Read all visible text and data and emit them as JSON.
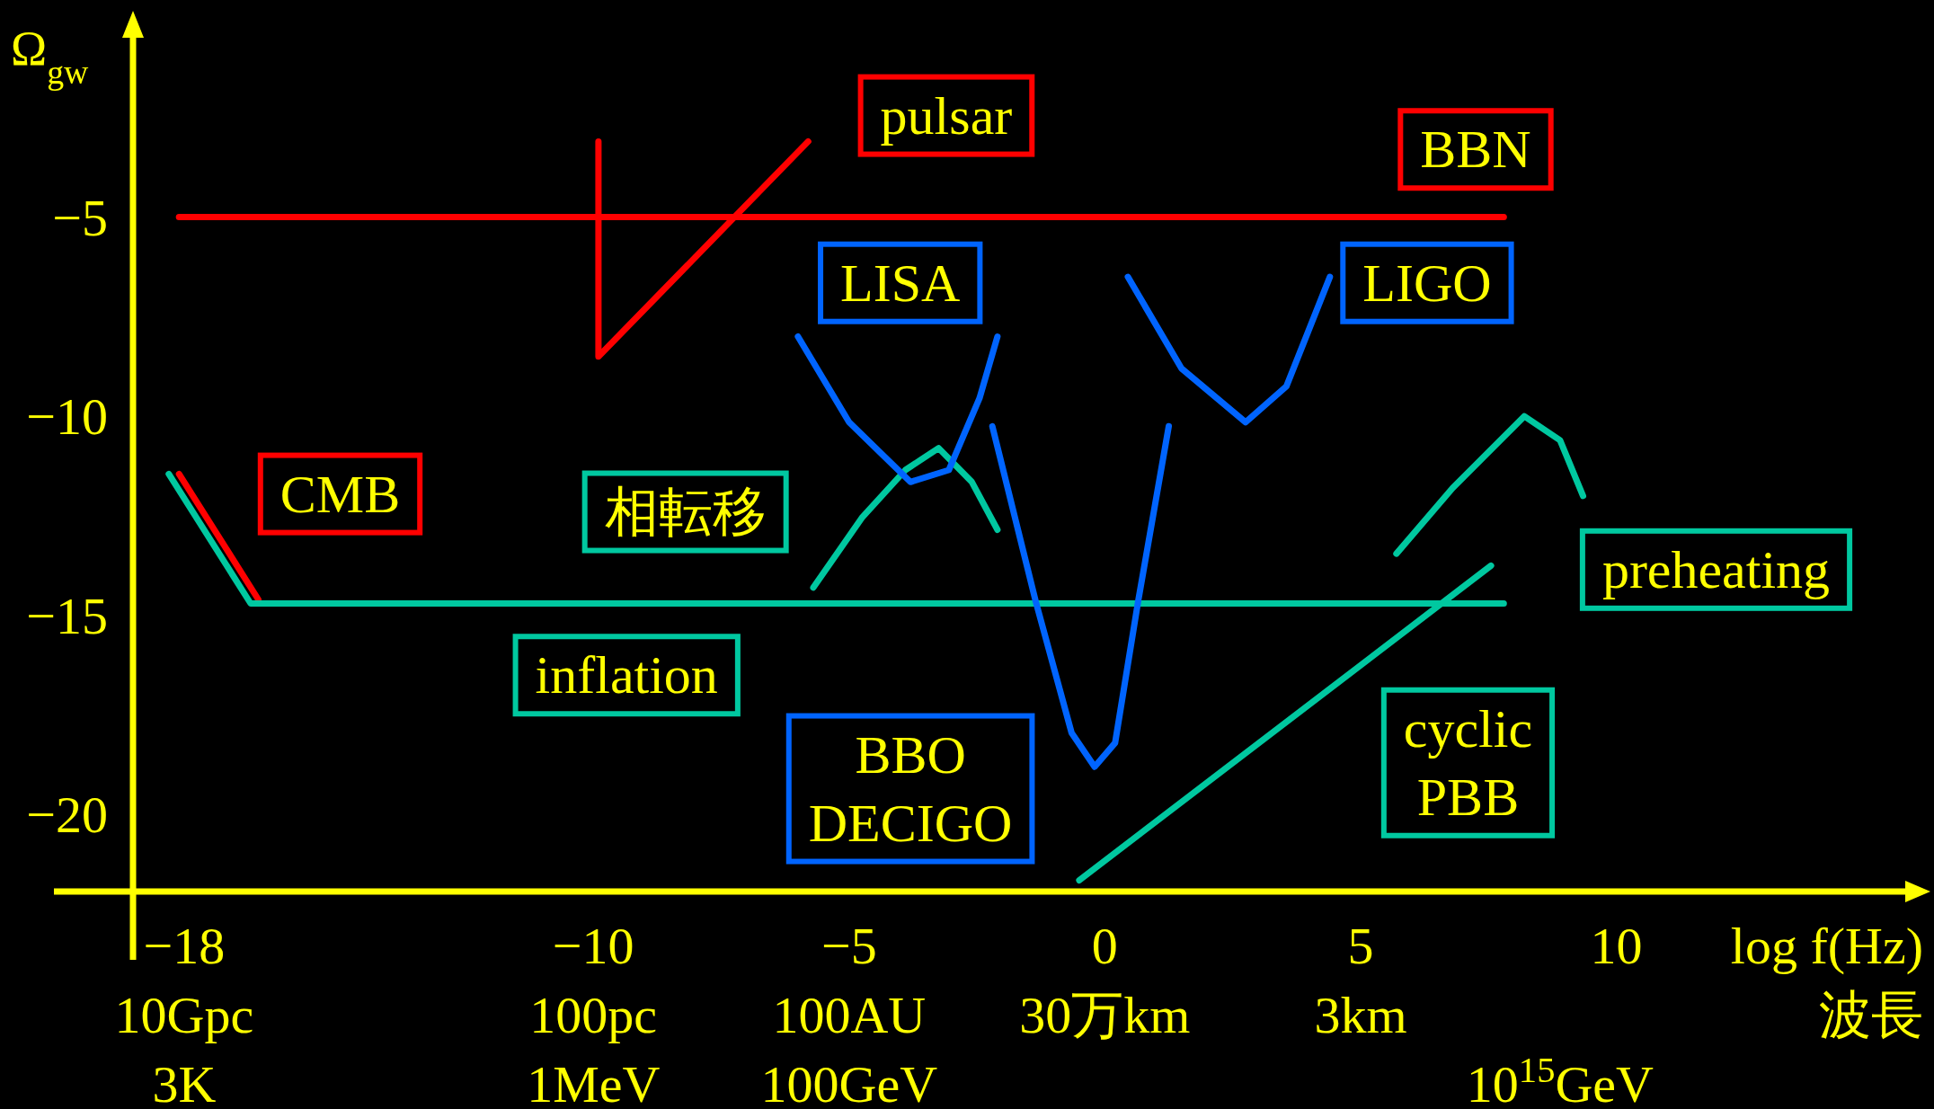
{
  "chart_data": {
    "type": "line",
    "ylabel": "Ω$_{gw}$",
    "xlabel": "log f(Hz)\n波長",
    "xlim": [
      -19,
      16
    ],
    "ylim": [
      -22,
      0
    ],
    "xticks": [
      {
        "value": -18,
        "label": "−18"
      },
      {
        "value": -10,
        "label": "−10"
      },
      {
        "value": -5,
        "label": "−5"
      },
      0,
      5,
      10
    ],
    "annotations": [
      "10Gpc",
      "3K",
      "100pc",
      "1MeV",
      "100AU",
      "100GeV",
      "30万km",
      "3km",
      "10$^{15}$GeV"
    ],
    "yticks": [
      {
        "value": -5,
        "label": "−5"
      },
      {
        "value": -10,
        "label": "−10"
      },
      {
        "value": -15,
        "label": "−15"
      },
      {
        "value": -20,
        "label": "−20"
      }
    ],
    "grid": false,
    "legend": false,
    "line_style": "solid",
    "marker": "none",
    "series": [
      {
        "name": "BBN",
        "color": "#ff0000",
        "x": [
          -18.1,
          7.8
        ],
        "values": [
          -5,
          -5
        ]
      },
      {
        "name": "pulsar",
        "color": "#ff0000",
        "x": [
          -9.9,
          -9.9,
          -5.8
        ],
        "values": [
          -3.1,
          -8.5,
          -3.1
        ]
      },
      {
        "name": "CMB",
        "color": "#ff0000",
        "x": [
          -18.1,
          -16.55
        ],
        "values": [
          -11.45,
          -14.6
        ]
      },
      {
        "name": "inflation",
        "color": "#00c8a0",
        "x": [
          -18.3,
          -16.7,
          7.8
        ],
        "values": [
          -11.45,
          -14.7,
          -14.7
        ]
      },
      {
        "name": "相転移",
        "color": "#00c8a0",
        "x": [
          -5.7,
          -4.75,
          -3.9,
          -3.25,
          -2.6,
          -2.1
        ],
        "values": [
          -14.3,
          -12.55,
          -11.35,
          -10.8,
          -11.65,
          -12.85
        ]
      },
      {
        "name": "preheating",
        "color": "#00c8a0",
        "x": [
          5.7,
          6.8,
          8.2,
          8.9,
          9.35
        ],
        "values": [
          -13.45,
          -11.8,
          -10.0,
          -10.6,
          -12.0
        ]
      },
      {
        "name": "cyclic\nPBB",
        "color": "#00c8a0",
        "x": [
          -0.5,
          7.55
        ],
        "values": [
          -21.65,
          -13.75
        ]
      },
      {
        "name": "LISA",
        "color": "#0064ff",
        "x": [
          -6.0,
          -5.0,
          -3.8,
          -3.05,
          -2.45,
          -2.1
        ],
        "values": [
          -8.0,
          -10.15,
          -11.65,
          -11.35,
          -9.55,
          -8.0
        ]
      },
      {
        "name": "BBO\nDECIGO",
        "color": "#0064ff",
        "x": [
          -2.2,
          -1.35,
          -0.65,
          -0.2,
          0.2,
          0.65,
          1.25
        ],
        "values": [
          -10.25,
          -14.65,
          -17.95,
          -18.8,
          -18.2,
          -14.65,
          -10.25
        ]
      },
      {
        "name": "LIGO",
        "color": "#0064ff",
        "x": [
          0.45,
          1.5,
          2.75,
          3.55,
          4.4
        ],
        "values": [
          -6.5,
          -8.8,
          -10.15,
          -9.25,
          -6.5
        ]
      }
    ]
  }
}
